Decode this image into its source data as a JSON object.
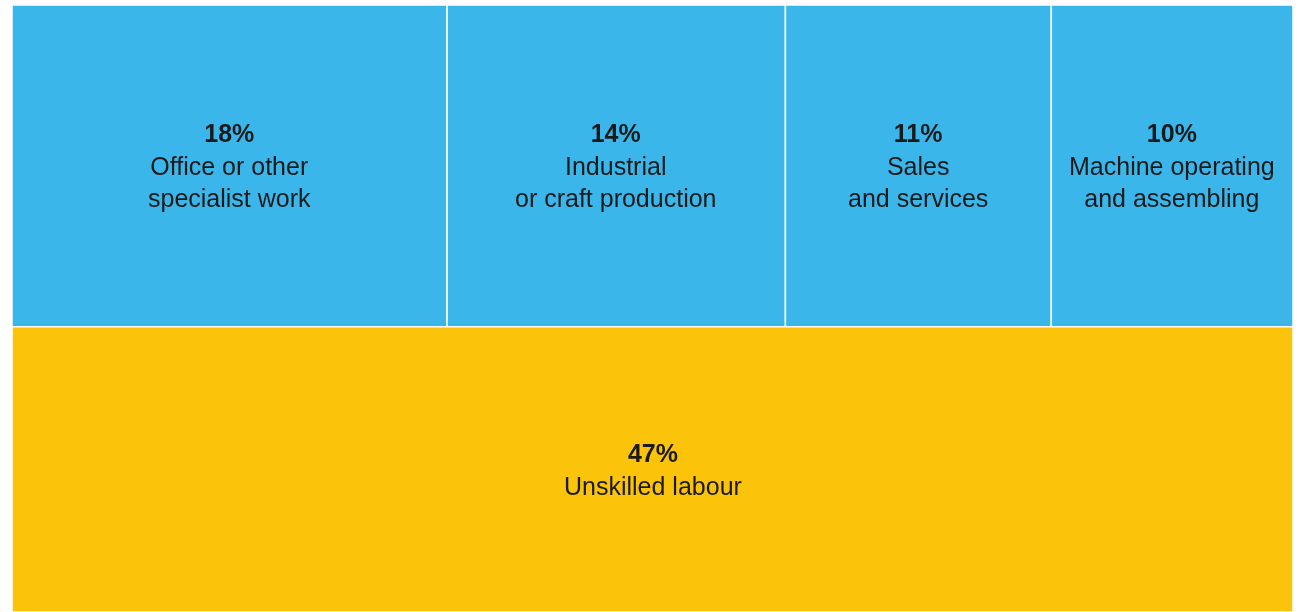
{
  "chart_data": {
    "type": "other",
    "categories": [
      "Office or other\nspecialist work",
      "Industrial\nor craft production",
      "Sales\nand services",
      "Machine operating\nand assembling",
      "Unskilled labour"
    ],
    "values": [
      18,
      14,
      11,
      10,
      47
    ],
    "value_labels": [
      "18%",
      "14%",
      "11%",
      "10%",
      "47%"
    ],
    "colors": [
      "#3bb6ea",
      "#3bb6ea",
      "#3bb6ea",
      "#3bb6ea",
      "#fcc30b"
    ]
  }
}
